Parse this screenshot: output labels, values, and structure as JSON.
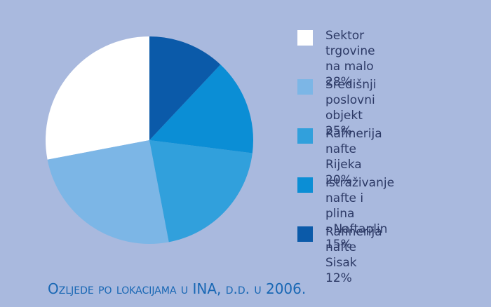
{
  "chart_data": {
    "type": "pie",
    "title": "Ozljede po lokacijama u INA, d.d. u 2006.",
    "categories": [
      "Sektor trgovine\nna malo",
      "Središnji poslovni\nobjekt",
      "Rafinerija nafte\nRijeka",
      "Istraživanje nafte i plina\n- Naftaplin",
      "Rafinerija nafte\nSisak"
    ],
    "values": [
      28,
      25,
      20,
      15,
      12
    ],
    "value_labels": [
      "28%",
      "25%",
      "20%",
      "15%",
      "12%"
    ],
    "colors": [
      "#ffffff",
      "#7cb6e6",
      "#31a0dc",
      "#0b8ed5",
      "#0b5aa9"
    ]
  }
}
